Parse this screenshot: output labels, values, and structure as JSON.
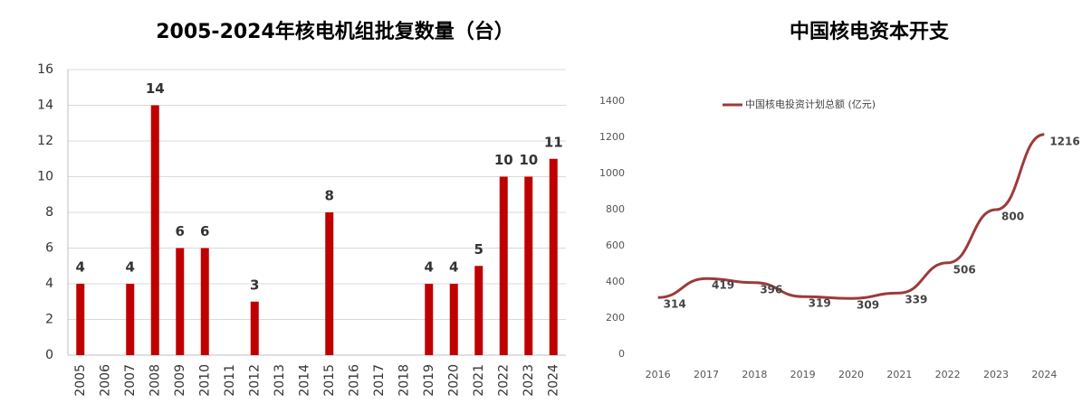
{
  "chart_data": [
    {
      "type": "bar",
      "title": "2005-2024年核电机组批复数量（台）",
      "categories": [
        "2005",
        "2006",
        "2007",
        "2008",
        "2009",
        "2010",
        "2011",
        "2012",
        "2013",
        "2014",
        "2015",
        "2016",
        "2017",
        "2018",
        "2019",
        "2020",
        "2021",
        "2022",
        "2023",
        "2024"
      ],
      "values": [
        4,
        0,
        4,
        14,
        6,
        6,
        0,
        3,
        0,
        0,
        8,
        0,
        0,
        0,
        4,
        4,
        5,
        10,
        10,
        11
      ],
      "color": "#c00000",
      "ylim": [
        0,
        16
      ],
      "yticks": [
        0,
        2,
        4,
        6,
        8,
        10,
        12,
        14,
        16
      ],
      "grid": true
    },
    {
      "type": "line",
      "title": "中国核电资本开支",
      "categories": [
        "2016",
        "2017",
        "2018",
        "2019",
        "2020",
        "2021",
        "2022",
        "2023",
        "2024"
      ],
      "series": [
        {
          "name": "中国核电投资计划总额 (亿元)",
          "color": "#9e3a3a",
          "values": [
            314,
            419,
            396,
            319,
            309,
            339,
            506,
            800,
            1216
          ]
        }
      ],
      "ylim": [
        0,
        1400
      ],
      "yticks": [
        0,
        200,
        400,
        600,
        800,
        1000,
        1200,
        1400
      ],
      "grid": false,
      "legend": "top-left"
    }
  ]
}
